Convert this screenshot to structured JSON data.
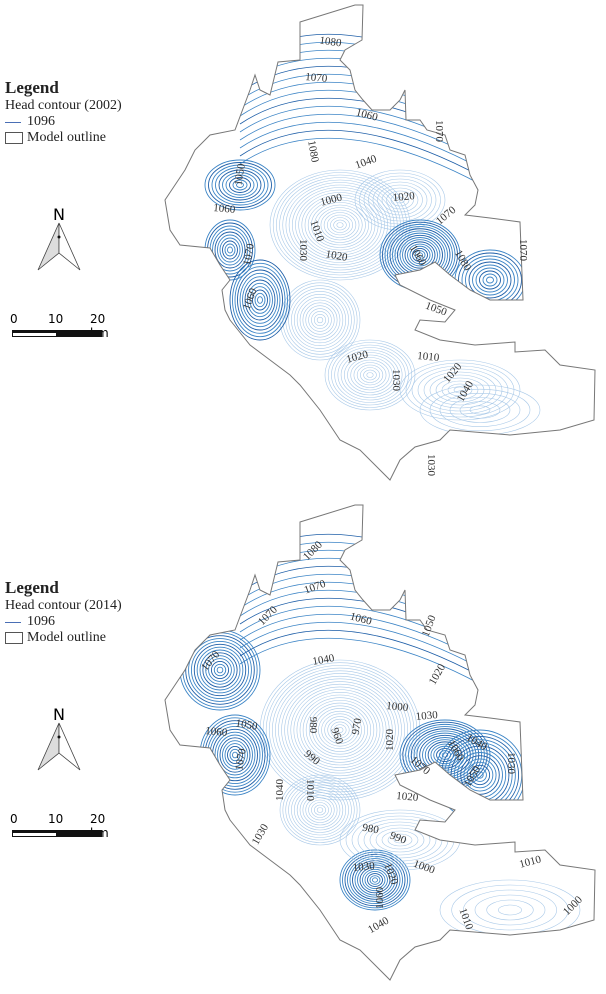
{
  "maps": [
    {
      "legend": {
        "title": "Legend",
        "subtitle": "Head contour (2002)",
        "line_label": "1096",
        "outline_label": "Model outline"
      },
      "north_label": "N",
      "scale": {
        "ticks": [
          "0",
          "10",
          "20 km"
        ]
      },
      "contour_labels": [
        "1080",
        "1070",
        "1060",
        "1070",
        "1080",
        "1050",
        "1040",
        "1000",
        "1020",
        "1060",
        "1070",
        "1010",
        "1030",
        "1020",
        "1070",
        "1070",
        "1060",
        "1080",
        "1060",
        "1050",
        "1020",
        "1030",
        "1010",
        "1020",
        "1040",
        "1030"
      ]
    },
    {
      "legend": {
        "title": "Legend",
        "subtitle": "Head contour (2014)",
        "line_label": "1096",
        "outline_label": "Model outline"
      },
      "north_label": "N",
      "scale": {
        "ticks": [
          "0",
          "10",
          "20 km"
        ]
      },
      "contour_labels": [
        "1080",
        "1070",
        "1070",
        "1060",
        "1050",
        "1070",
        "1040",
        "1020",
        "1000",
        "1030",
        "980",
        "960",
        "970",
        "1050",
        "1060",
        "1020",
        "1070",
        "1060",
        "1040",
        "990",
        "1070",
        "1030",
        "1010",
        "1040",
        "1050",
        "1020",
        "1030",
        "980",
        "990",
        "1000",
        "1010",
        "1030",
        "1020",
        "1060",
        "1000",
        "1010",
        "1040"
      ]
    }
  ],
  "colors": {
    "contour_dark": "#1f5fa8",
    "contour_mid": "#3d85c6",
    "contour_light": "#a9c9e8",
    "outline": "#777777"
  }
}
